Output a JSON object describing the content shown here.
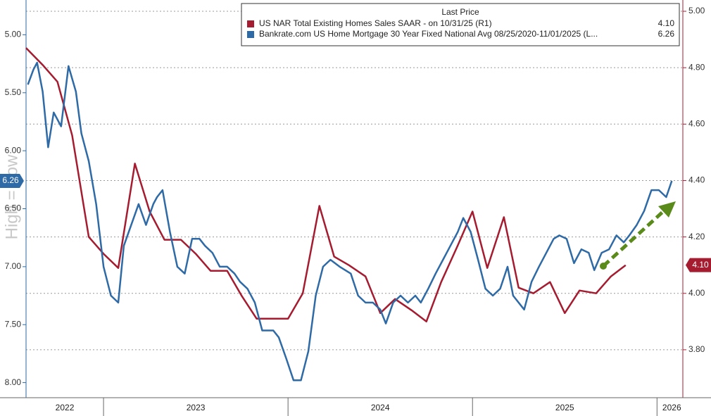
{
  "chart_data": {
    "type": "line",
    "watermark": "High = Low",
    "legend_title": "Last Price",
    "xlim": [
      2022.58,
      2026.14
    ],
    "xticks": [
      {
        "value": 2022.79,
        "label": "2022"
      },
      {
        "value": 2023.5,
        "label": "2023"
      },
      {
        "value": 2024.5,
        "label": "2024"
      },
      {
        "value": 2025.5,
        "label": "2025"
      },
      {
        "value": 2026.08,
        "label": "2026"
      }
    ],
    "ylim": [
      8.13,
      4.7
    ],
    "yticks": [
      {
        "value": 5,
        "label": "5.00"
      },
      {
        "value": 5.5,
        "label": "5.50"
      },
      {
        "value": 6,
        "label": "6.00"
      },
      {
        "value": 6.5,
        "label": "6.50"
      },
      {
        "value": 7,
        "label": "7.00"
      },
      {
        "value": 7.5,
        "label": "7.50"
      },
      {
        "value": 8,
        "label": "8.00"
      }
    ],
    "y2lim": [
      3.63,
      5.04
    ],
    "y2ticks": [
      {
        "value": 3.8,
        "label": "3.80"
      },
      {
        "value": 4,
        "label": "4.00"
      },
      {
        "value": 4.2,
        "label": "4.20"
      },
      {
        "value": 4.4,
        "label": "4.40"
      },
      {
        "value": 4.6,
        "label": "4.60"
      },
      {
        "value": 4.8,
        "label": "4.80"
      },
      {
        "value": 5,
        "label": "5.00"
      }
    ],
    "grid": true,
    "series": [
      {
        "name": "US NAR Total Existing Homes Sales SAAR -  on 10/31/25  (R1)",
        "color": "#a51c30",
        "axis": "y2",
        "last_label": "4.10",
        "x": [
          2022.58,
          2022.67,
          2022.75,
          2022.83,
          2022.92,
          2023.0,
          2023.08,
          2023.17,
          2023.25,
          2023.33,
          2023.42,
          2023.5,
          2023.58,
          2023.67,
          2023.75,
          2023.83,
          2023.92,
          2024.0,
          2024.08,
          2024.17,
          2024.25,
          2024.33,
          2024.42,
          2024.5,
          2024.58,
          2024.67,
          2024.75,
          2024.83,
          2024.92,
          2025.0,
          2025.08,
          2025.17,
          2025.25,
          2025.33,
          2025.42,
          2025.5,
          2025.58,
          2025.67,
          2025.75,
          2025.83
        ],
        "values": [
          4.87,
          4.81,
          4.75,
          4.56,
          4.2,
          4.14,
          4.09,
          4.46,
          4.29,
          4.19,
          4.19,
          4.14,
          4.08,
          4.08,
          3.99,
          3.91,
          3.91,
          3.91,
          4.0,
          4.31,
          4.13,
          4.1,
          4.06,
          3.93,
          3.98,
          3.94,
          3.9,
          4.04,
          4.17,
          4.29,
          4.09,
          4.27,
          4.02,
          4.0,
          4.04,
          3.93,
          4.01,
          4.0,
          4.06,
          4.1
        ]
      },
      {
        "name": "Bankrate.com US Home Mortgage 30 Year Fixed National Avg 08/25/2020-11/01/2025   (L...",
        "color": "#2e6aa6",
        "axis": "y",
        "last_label": "6.26",
        "x": [
          2022.59,
          2022.62,
          2022.64,
          2022.67,
          2022.7,
          2022.73,
          2022.77,
          2022.81,
          2022.85,
          2022.88,
          2022.92,
          2022.96,
          2023.0,
          2023.04,
          2023.08,
          2023.11,
          2023.15,
          2023.19,
          2023.23,
          2023.27,
          2023.29,
          2023.32,
          2023.36,
          2023.4,
          2023.44,
          2023.48,
          2023.52,
          2023.55,
          2023.59,
          2023.63,
          2023.67,
          2023.71,
          2023.74,
          2023.78,
          2023.82,
          2023.86,
          2023.92,
          2023.95,
          2023.99,
          2024.03,
          2024.07,
          2024.11,
          2024.15,
          2024.19,
          2024.23,
          2024.28,
          2024.34,
          2024.38,
          2024.42,
          2024.46,
          2024.5,
          2024.53,
          2024.57,
          2024.61,
          2024.65,
          2024.69,
          2024.72,
          2024.76,
          2024.8,
          2024.84,
          2024.88,
          2024.92,
          2024.95,
          2024.99,
          2025.03,
          2025.07,
          2025.11,
          2025.15,
          2025.19,
          2025.22,
          2025.28,
          2025.32,
          2025.36,
          2025.4,
          2025.44,
          2025.47,
          2025.51,
          2025.55,
          2025.59,
          2025.63,
          2025.66,
          2025.7,
          2025.74,
          2025.78,
          2025.82,
          2025.85,
          2025.89,
          2025.93,
          2025.97,
          2026.01,
          2026.05,
          2026.08
        ],
        "values": [
          5.43,
          5.3,
          5.24,
          5.49,
          5.97,
          5.67,
          5.79,
          5.27,
          5.49,
          5.85,
          6.09,
          6.46,
          7.0,
          7.25,
          7.31,
          6.82,
          6.64,
          6.46,
          6.64,
          6.46,
          6.4,
          6.34,
          6.7,
          7.0,
          7.06,
          6.76,
          6.76,
          6.82,
          6.88,
          7.0,
          7.0,
          7.06,
          7.13,
          7.19,
          7.31,
          7.55,
          7.55,
          7.61,
          7.79,
          7.98,
          7.98,
          7.73,
          7.25,
          7.0,
          6.94,
          7.0,
          7.06,
          7.25,
          7.31,
          7.31,
          7.37,
          7.49,
          7.31,
          7.25,
          7.31,
          7.25,
          7.31,
          7.19,
          7.06,
          6.94,
          6.82,
          6.7,
          6.58,
          6.7,
          6.94,
          7.19,
          7.25,
          7.19,
          7.0,
          7.25,
          7.37,
          7.13,
          7.0,
          6.88,
          6.76,
          6.73,
          6.76,
          6.97,
          6.85,
          6.88,
          7.03,
          6.88,
          6.85,
          6.73,
          6.79,
          6.73,
          6.64,
          6.52,
          6.34,
          6.34,
          6.4,
          6.26
        ]
      }
    ]
  }
}
